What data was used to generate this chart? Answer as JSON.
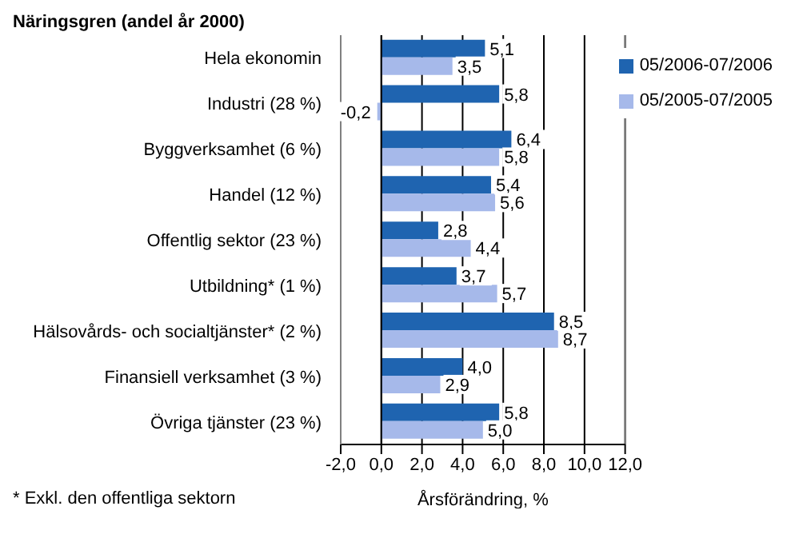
{
  "chart_data": {
    "type": "bar",
    "orientation": "horizontal",
    "title": "Näringsgren (andel år 2000)",
    "xlabel": "Årsförändring, %",
    "annotations": [
      "* Exkl. den offentliga sektorn"
    ],
    "categories": [
      "Hela ekonomin",
      "Industri (28 %)",
      "Byggverksamhet (6 %)",
      "Handel (12 %)",
      "Offentlig sektor (23 %)",
      "Utbildning* (1 %)",
      "Hälsovårds- och socialtjänster* (2 %)",
      "Finansiell verksamhet (3 %)",
      "Övriga tjänster (23 %)"
    ],
    "series": [
      {
        "name": "05/2006-07/2006",
        "color": "#1f64b0",
        "values": [
          5.1,
          5.8,
          6.4,
          5.4,
          2.8,
          3.7,
          8.5,
          4.0,
          5.8
        ],
        "value_labels": [
          "5,1",
          "5,8",
          "6,4",
          "5,4",
          "2,8",
          "3,7",
          "8,5",
          "4,0",
          "5,8"
        ]
      },
      {
        "name": "05/2005-07/2005",
        "color": "#a6b9ea",
        "values": [
          3.5,
          -0.2,
          5.8,
          5.6,
          4.4,
          5.7,
          8.7,
          2.9,
          5.0
        ],
        "value_labels": [
          "3,5",
          "-0,2",
          "5,8",
          "5,6",
          "4,4",
          "5,7",
          "8,7",
          "2,9",
          "5,0"
        ]
      }
    ],
    "xlim": [
      -2,
      12
    ],
    "xticks": [
      {
        "value": -2,
        "label": "-2,0"
      },
      {
        "value": 0,
        "label": "0,0"
      },
      {
        "value": 2,
        "label": "2,0"
      },
      {
        "value": 4,
        "label": "4,0"
      },
      {
        "value": 6,
        "label": "6,0"
      },
      {
        "value": 8,
        "label": "8,0"
      },
      {
        "value": 10,
        "label": "10,0"
      },
      {
        "value": 12,
        "label": "12,0"
      }
    ],
    "grid": "x",
    "legend": "top right"
  }
}
